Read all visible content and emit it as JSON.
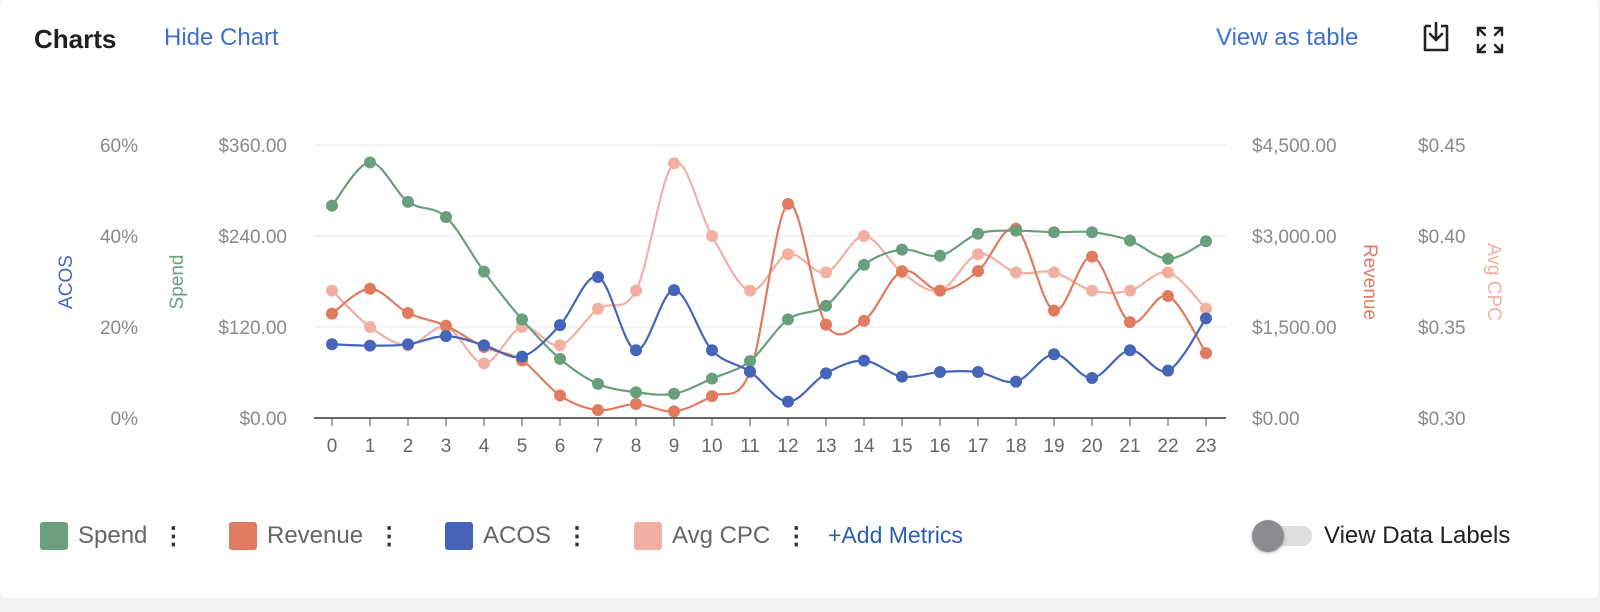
{
  "header": {
    "title": "Charts",
    "hide_label": "Hide Chart",
    "view_table_label": "View as table"
  },
  "legend": [
    {
      "label": "Spend",
      "color": "#6a9f7e"
    },
    {
      "label": "Revenue",
      "color": "#e07b5f"
    },
    {
      "label": "ACOS",
      "color": "#4566b8"
    },
    {
      "label": "Avg CPC",
      "color": "#f3b0a2"
    }
  ],
  "add_metrics_label": "+Add Metrics",
  "toggle": {
    "label": "View Data Labels",
    "on": false
  },
  "chart_data": {
    "type": "line",
    "categories": [
      "0",
      "1",
      "2",
      "3",
      "4",
      "5",
      "6",
      "7",
      "8",
      "9",
      "10",
      "11",
      "12",
      "13",
      "14",
      "15",
      "16",
      "17",
      "18",
      "19",
      "20",
      "21",
      "22",
      "23"
    ],
    "axes": {
      "acos": {
        "label": "ACOS",
        "ticks": [
          "0%",
          "20%",
          "40%",
          "60%"
        ],
        "range": [
          0,
          60
        ]
      },
      "spend": {
        "label": "Spend",
        "ticks": [
          "$0.00",
          "$120.00",
          "$240.00",
          "$360.00"
        ],
        "range": [
          0,
          360
        ]
      },
      "revenue": {
        "label": "Revenue",
        "ticks": [
          "$0.00",
          "$1,500.00",
          "$3,000.00",
          "$4,500.00"
        ],
        "range": [
          0,
          4500
        ]
      },
      "cpc": {
        "label": "Avg CPC",
        "ticks": [
          "$0.30",
          "$0.35",
          "$0.40",
          "$0.45"
        ],
        "range": [
          0.3,
          0.45
        ]
      }
    },
    "series": [
      {
        "name": "Spend",
        "axis": "spend",
        "color": "#6a9f7e",
        "values": [
          280,
          337,
          285,
          265,
          193,
          130,
          78,
          45,
          34,
          32,
          52,
          75,
          130,
          148,
          202,
          222,
          214,
          243,
          247,
          245,
          245,
          234,
          210,
          233
        ]
      },
      {
        "name": "Revenue",
        "axis": "revenue",
        "color": "#e07b5f",
        "values": [
          1720,
          2130,
          1730,
          1520,
          1170,
          950,
          370,
          130,
          230,
          110,
          360,
          760,
          3530,
          1540,
          1600,
          2420,
          2100,
          2420,
          3120,
          1770,
          2660,
          1580,
          2010,
          1070
        ]
      },
      {
        "name": "ACOS",
        "axis": "acos",
        "color": "#4566b8",
        "values": [
          16.2,
          15.9,
          16.2,
          18.0,
          16.0,
          13.5,
          20.4,
          31.0,
          14.9,
          28.1,
          14.9,
          10.2,
          3.6,
          9.8,
          12.6,
          9.1,
          10.1,
          10.1,
          8.0,
          14.0,
          8.8,
          14.9,
          10.4,
          21.9
        ]
      },
      {
        "name": "Avg CPC",
        "axis": "cpc",
        "color": "#f3b0a2",
        "values": [
          0.37,
          0.35,
          0.34,
          0.35,
          0.33,
          0.35,
          0.34,
          0.36,
          0.37,
          0.44,
          0.4,
          0.37,
          0.39,
          0.38,
          0.4,
          0.38,
          0.37,
          0.39,
          0.38,
          0.38,
          0.37,
          0.37,
          0.38,
          0.36
        ]
      }
    ],
    "grid": true
  }
}
